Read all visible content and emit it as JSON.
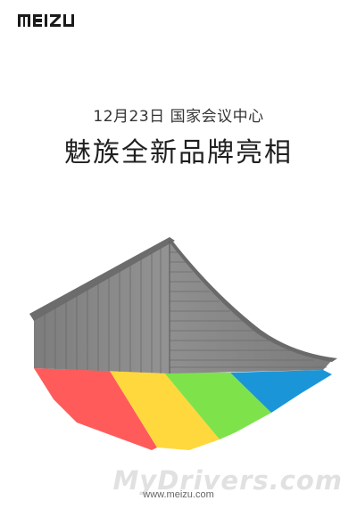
{
  "brand": {
    "logo_text": "MEIZU"
  },
  "event": {
    "date_venue": "12月23日 国家会议中心",
    "headline": "魅族全新品牌亮相"
  },
  "footer": {
    "url": "www.meizu.com",
    "watermark": "MyDrivers.com"
  },
  "colors": {
    "red": "#ff5b5b",
    "yellow": "#ffd83d",
    "green": "#7ee34a",
    "blue": "#1a96d8",
    "building_gray": "#8a8a8a"
  },
  "icons": {
    "logo": "meizu-logo",
    "illustration": "building-icon"
  }
}
